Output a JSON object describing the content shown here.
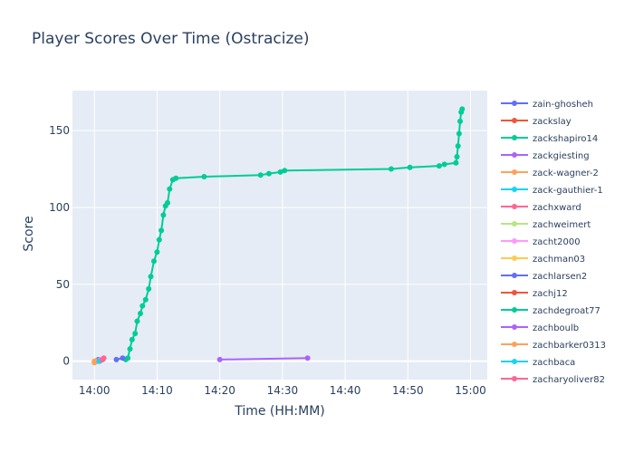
{
  "chart_data": {
    "type": "line",
    "title": "Player Scores Over Time (Ostracize)",
    "xlabel": "Time (HH:MM)",
    "ylabel": "Score",
    "x_axis_type": "time",
    "xlim": [
      "14:00",
      "15:00"
    ],
    "ylim": [
      -12,
      176
    ],
    "x_ticks": [
      "14:00",
      "14:10",
      "14:20",
      "14:30",
      "14:40",
      "14:50",
      "15:00"
    ],
    "y_ticks": [
      0,
      50,
      100,
      150
    ],
    "grid": true,
    "plot_background": "#e5ecf6",
    "legend_position": "right",
    "series": [
      {
        "name": "zain-ghosheh",
        "color": "#636efa",
        "points": [
          [
            "14:00:20",
            0
          ],
          [
            "14:00:40",
            1
          ]
        ]
      },
      {
        "name": "zackslay",
        "color": "#ef553b",
        "points": [
          [
            "14:00:50",
            0
          ],
          [
            "14:01:10",
            1
          ]
        ]
      },
      {
        "name": "zackshapiro14",
        "color": "#00cc96",
        "points": [
          [
            "14:05:00",
            1
          ],
          [
            "14:05:20",
            2
          ],
          [
            "14:05:40",
            8
          ],
          [
            "14:06:00",
            14
          ],
          [
            "14:06:30",
            18
          ],
          [
            "14:06:50",
            26
          ],
          [
            "14:07:20",
            31
          ],
          [
            "14:07:40",
            36
          ],
          [
            "14:08:10",
            40
          ],
          [
            "14:08:40",
            47
          ],
          [
            "14:09:00",
            55
          ],
          [
            "14:09:30",
            65
          ],
          [
            "14:10:00",
            71
          ],
          [
            "14:10:20",
            79
          ],
          [
            "14:10:40",
            85
          ],
          [
            "14:11:00",
            95
          ],
          [
            "14:11:20",
            101
          ],
          [
            "14:11:40",
            103
          ],
          [
            "14:12:00",
            112
          ],
          [
            "14:12:30",
            118
          ],
          [
            "14:13:00",
            119
          ],
          [
            "14:17:30",
            120
          ],
          [
            "14:26:30",
            121
          ],
          [
            "14:27:50",
            122
          ],
          [
            "14:29:40",
            123
          ],
          [
            "14:30:20",
            124
          ],
          [
            "14:47:20",
            125
          ],
          [
            "14:50:20",
            126
          ],
          [
            "14:55:00",
            127
          ],
          [
            "14:55:50",
            128
          ],
          [
            "14:57:40",
            129
          ],
          [
            "14:57:50",
            133
          ],
          [
            "14:58:00",
            140
          ],
          [
            "14:58:10",
            148
          ],
          [
            "14:58:20",
            156
          ],
          [
            "14:58:30",
            162
          ],
          [
            "14:58:40",
            164
          ]
        ]
      },
      {
        "name": "zackgiesting",
        "color": "#ab63fa",
        "points": [
          [
            "14:20:00",
            1
          ],
          [
            "14:34:00",
            2
          ]
        ]
      },
      {
        "name": "zack-wagner-2",
        "color": "#ffa15a",
        "points": [
          [
            "14:00:00",
            0
          ]
        ]
      },
      {
        "name": "zack-gauthier-1",
        "color": "#19d3f3",
        "points": [
          [
            "14:00:10",
            0
          ]
        ]
      },
      {
        "name": "zachxward",
        "color": "#ff6692",
        "points": [
          [
            "14:01:20",
            1
          ],
          [
            "14:01:30",
            2
          ]
        ]
      },
      {
        "name": "zachweimert",
        "color": "#b6e880",
        "points": [
          [
            "14:00:30",
            0
          ]
        ]
      },
      {
        "name": "zacht2000",
        "color": "#ff97ff",
        "points": [
          [
            "14:01:00",
            1
          ]
        ]
      },
      {
        "name": "zachman03",
        "color": "#fecb52",
        "points": [
          [
            "14:00:05",
            0
          ]
        ]
      },
      {
        "name": "zachlarsen2",
        "color": "#636efa",
        "points": [
          [
            "14:03:30",
            1
          ],
          [
            "14:04:30",
            2
          ]
        ]
      },
      {
        "name": "zachj12",
        "color": "#ef553b",
        "points": [
          [
            "14:00:15",
            0
          ]
        ]
      },
      {
        "name": "zachdegroat77",
        "color": "#00cc96",
        "points": [
          [
            "14:00:35",
            0
          ]
        ]
      },
      {
        "name": "zachboulb",
        "color": "#ab63fa",
        "points": [
          [
            "14:00:25",
            0
          ]
        ]
      },
      {
        "name": "zachbarker0313",
        "color": "#ffa15a",
        "points": [
          [
            "14:00:00",
            -1
          ],
          [
            "14:00:10",
            0
          ]
        ]
      },
      {
        "name": "zachbaca",
        "color": "#19d3f3",
        "points": [
          [
            "14:00:45",
            0
          ]
        ]
      },
      {
        "name": "zacharyoliver82",
        "color": "#ff6692",
        "points": [
          [
            "14:01:15",
            1
          ]
        ]
      }
    ]
  }
}
